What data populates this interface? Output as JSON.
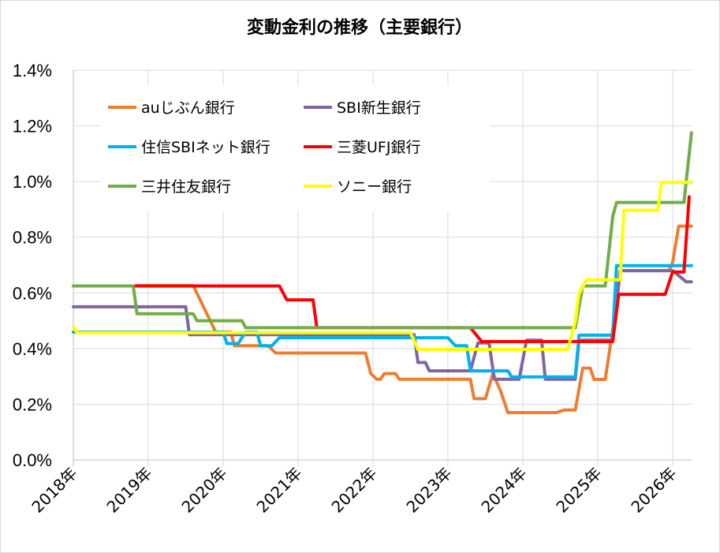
{
  "chart_data": {
    "type": "line",
    "title": "変動金利の推移（主要銀行）",
    "xlabel": "",
    "ylabel": "",
    "x_range": [
      2018.0,
      2026.25
    ],
    "ylim": [
      0,
      1.4
    ],
    "y_ticks": [
      0.0,
      0.2,
      0.4,
      0.6,
      0.8,
      1.0,
      1.2,
      1.4
    ],
    "y_tick_labels": [
      "0.0%",
      "0.2%",
      "0.4%",
      "0.6%",
      "0.8%",
      "1.0%",
      "1.2%",
      "1.4%"
    ],
    "x_ticks": [
      2018,
      2019,
      2020,
      2021,
      2022,
      2023,
      2024,
      2025,
      2026
    ],
    "x_tick_labels": [
      "2018年",
      "2019年",
      "2020年",
      "2021年",
      "2022年",
      "2023年",
      "2024年",
      "2025年",
      "2026年"
    ],
    "grid": "vertical and horizontal",
    "legend_position": "top-left",
    "series": [
      {
        "name": "auじぶん銀行",
        "color": "#ED7D31",
        "points": [
          [
            2018.85,
            0.626
          ],
          [
            2019.6,
            0.626
          ],
          [
            2019.9,
            0.46
          ],
          [
            2020.1,
            0.46
          ],
          [
            2020.15,
            0.41
          ],
          [
            2020.6,
            0.41
          ],
          [
            2020.7,
            0.384
          ],
          [
            2021.1,
            0.384
          ],
          [
            2021.9,
            0.384
          ],
          [
            2021.97,
            0.31
          ],
          [
            2022.05,
            0.29
          ],
          [
            2022.1,
            0.29
          ],
          [
            2022.15,
            0.31
          ],
          [
            2022.3,
            0.31
          ],
          [
            2022.35,
            0.29
          ],
          [
            2023.3,
            0.29
          ],
          [
            2023.35,
            0.22
          ],
          [
            2023.5,
            0.22
          ],
          [
            2023.6,
            0.31
          ],
          [
            2023.7,
            0.25
          ],
          [
            2023.8,
            0.17
          ],
          [
            2024.45,
            0.17
          ],
          [
            2024.55,
            0.179
          ],
          [
            2024.7,
            0.179
          ],
          [
            2024.8,
            0.33
          ],
          [
            2024.9,
            0.33
          ],
          [
            2024.95,
            0.289
          ],
          [
            2025.1,
            0.289
          ],
          [
            2025.2,
            0.47
          ],
          [
            2025.3,
            0.68
          ],
          [
            2025.95,
            0.68
          ],
          [
            2026.0,
            0.71
          ],
          [
            2026.08,
            0.84
          ],
          [
            2026.25,
            0.84
          ]
        ]
      },
      {
        "name": "SBI新生銀行",
        "color": "#8064A2",
        "points": [
          [
            2018.0,
            0.55
          ],
          [
            2019.5,
            0.55
          ],
          [
            2019.55,
            0.45
          ],
          [
            2022.5,
            0.45
          ],
          [
            2022.55,
            0.45
          ],
          [
            2022.6,
            0.35
          ],
          [
            2022.7,
            0.35
          ],
          [
            2022.75,
            0.32
          ],
          [
            2023.3,
            0.32
          ],
          [
            2023.4,
            0.42
          ],
          [
            2023.55,
            0.42
          ],
          [
            2023.62,
            0.29
          ],
          [
            2023.95,
            0.29
          ],
          [
            2024.05,
            0.43
          ],
          [
            2024.25,
            0.43
          ],
          [
            2024.3,
            0.29
          ],
          [
            2024.7,
            0.29
          ],
          [
            2024.75,
            0.43
          ],
          [
            2025.2,
            0.43
          ],
          [
            2025.3,
            0.68
          ],
          [
            2026.0,
            0.68
          ],
          [
            2026.18,
            0.64
          ],
          [
            2026.25,
            0.64
          ]
        ]
      },
      {
        "name": "住信SBIネット銀行",
        "color": "#00B0F0",
        "points": [
          [
            2018.0,
            0.459
          ],
          [
            2020.0,
            0.459
          ],
          [
            2020.05,
            0.418
          ],
          [
            2020.2,
            0.418
          ],
          [
            2020.3,
            0.459
          ],
          [
            2020.45,
            0.459
          ],
          [
            2020.5,
            0.41
          ],
          [
            2020.65,
            0.41
          ],
          [
            2020.75,
            0.439
          ],
          [
            2023.0,
            0.439
          ],
          [
            2023.1,
            0.41
          ],
          [
            2023.25,
            0.41
          ],
          [
            2023.3,
            0.32
          ],
          [
            2023.8,
            0.32
          ],
          [
            2023.85,
            0.298
          ],
          [
            2024.7,
            0.298
          ],
          [
            2024.75,
            0.448
          ],
          [
            2025.2,
            0.448
          ],
          [
            2025.25,
            0.698
          ],
          [
            2026.25,
            0.698
          ]
        ]
      },
      {
        "name": "三菱UFJ銀行",
        "color": "#FF0000",
        "points": [
          [
            2018.8,
            0.625
          ],
          [
            2020.75,
            0.625
          ],
          [
            2020.85,
            0.575
          ],
          [
            2021.2,
            0.575
          ],
          [
            2021.25,
            0.475
          ],
          [
            2023.25,
            0.475
          ],
          [
            2023.3,
            0.475
          ],
          [
            2023.45,
            0.425
          ],
          [
            2025.2,
            0.425
          ],
          [
            2025.28,
            0.595
          ],
          [
            2025.9,
            0.595
          ],
          [
            2026.0,
            0.675
          ],
          [
            2026.15,
            0.675
          ],
          [
            2026.22,
            0.945
          ]
        ]
      },
      {
        "name": "三井住友銀行",
        "color": "#70AD47",
        "points": [
          [
            2018.0,
            0.625
          ],
          [
            2018.8,
            0.625
          ],
          [
            2018.85,
            0.525
          ],
          [
            2019.6,
            0.525
          ],
          [
            2019.65,
            0.5
          ],
          [
            2020.25,
            0.5
          ],
          [
            2020.3,
            0.475
          ],
          [
            2024.7,
            0.475
          ],
          [
            2024.8,
            0.625
          ],
          [
            2025.1,
            0.625
          ],
          [
            2025.2,
            0.875
          ],
          [
            2025.25,
            0.925
          ],
          [
            2026.15,
            0.925
          ],
          [
            2026.25,
            1.175
          ]
        ]
      },
      {
        "name": "ソニー銀行",
        "color": "#FFFF00",
        "points": [
          [
            2018.0,
            0.48
          ],
          [
            2018.05,
            0.457
          ],
          [
            2022.5,
            0.457
          ],
          [
            2022.6,
            0.397
          ],
          [
            2024.6,
            0.397
          ],
          [
            2024.7,
            0.497
          ],
          [
            2024.75,
            0.597
          ],
          [
            2024.85,
            0.647
          ],
          [
            2025.3,
            0.647
          ],
          [
            2025.35,
            0.897
          ],
          [
            2025.8,
            0.897
          ],
          [
            2025.85,
            0.997
          ],
          [
            2026.25,
            0.997
          ]
        ]
      }
    ]
  }
}
